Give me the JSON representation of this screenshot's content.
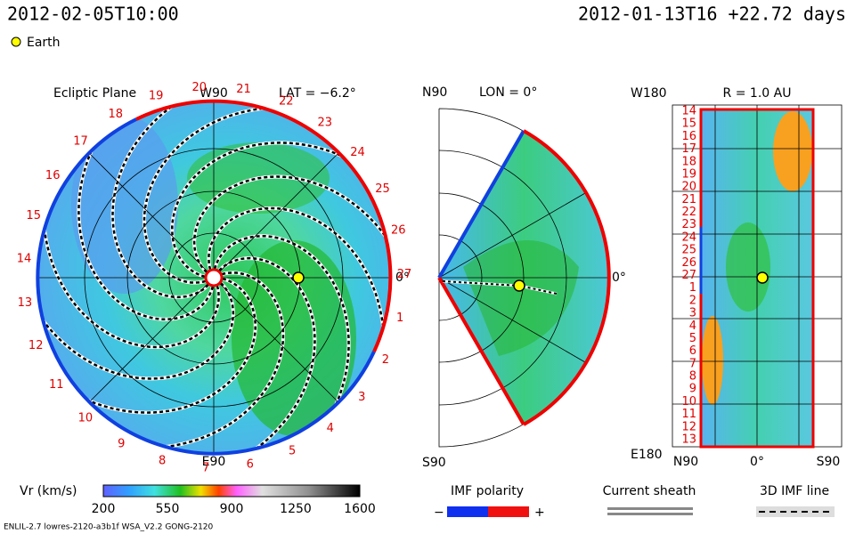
{
  "header": {
    "date": "2012-02-05T10:00",
    "run": "2012-01-13T16 +22.72 days",
    "earth_legend": "Earth"
  },
  "ecliptic": {
    "title": "Ecliptic Plane",
    "top": "W90",
    "lat": "LAT = −6.2°",
    "bottom": "E90",
    "right": "0°",
    "longitude_labels": [
      "1",
      "2",
      "3",
      "4",
      "5",
      "6",
      "7",
      "8",
      "9",
      "10",
      "11",
      "12",
      "13",
      "14",
      "15",
      "16",
      "17",
      "18",
      "19",
      "20",
      "21",
      "22",
      "23",
      "24",
      "25",
      "26",
      "27"
    ]
  },
  "meridional": {
    "top": "N90",
    "lon": "LON = 0°",
    "bottom": "S90",
    "right": "0°"
  },
  "radial": {
    "corner_top": "W180",
    "title": "R = 1.0 AU",
    "corner_bottom": "E180",
    "row_labels": [
      "14",
      "15",
      "16",
      "17",
      "18",
      "19",
      "20",
      "21",
      "22",
      "23",
      "24",
      "25",
      "26",
      "27",
      "1",
      "2",
      "3",
      "4",
      "5",
      "6",
      "7",
      "8",
      "9",
      "10",
      "11",
      "12",
      "13"
    ],
    "col_labels": [
      "N90",
      "0°",
      "S90"
    ]
  },
  "colorbar": {
    "label": "Vr (km/s)",
    "ticks": [
      200,
      550,
      900,
      1250,
      1600
    ]
  },
  "legends": {
    "imf_title": "IMF polarity",
    "minus": "−",
    "plus": "+",
    "sheath": "Current sheath",
    "imf_line": "3D IMF line"
  },
  "footer": "ENLIL-2.7 lowres-2120-a3b1f WSA_V2.2 GONG-2120"
}
